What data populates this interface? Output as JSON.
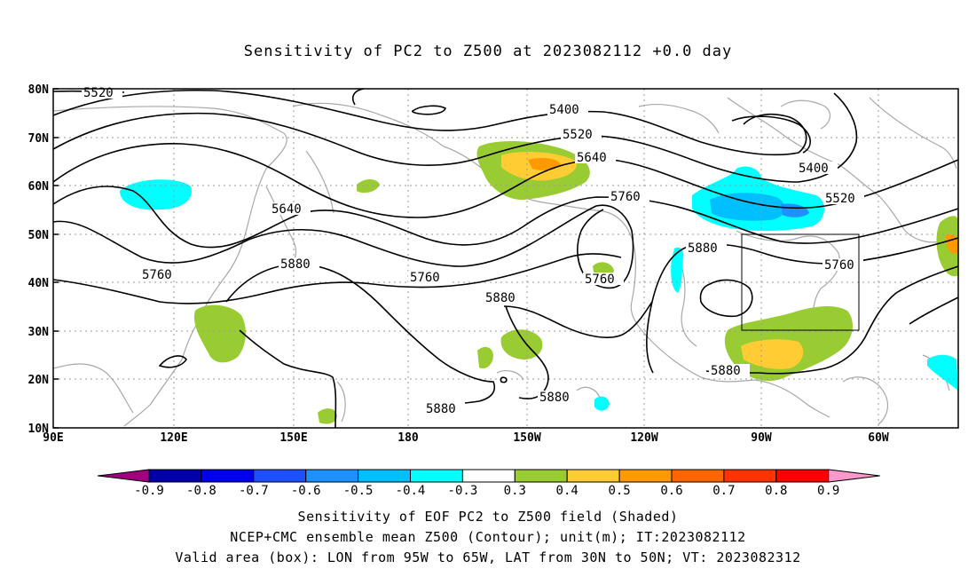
{
  "title": "Sensitivity of PC2 to Z500 at 2023082112 +0.0 day",
  "axes": {
    "lat_labels": [
      "80N",
      "70N",
      "60N",
      "50N",
      "40N",
      "30N",
      "20N",
      "10N"
    ],
    "lon_labels": [
      "90E",
      "120E",
      "150E",
      "180",
      "150W",
      "120W",
      "90W",
      "60W"
    ]
  },
  "contour_labels": [
    "5520",
    "5400",
    "5520",
    "5640",
    "5640",
    "5760",
    "5760",
    "5880",
    "5760",
    "5880",
    "5760",
    "5880",
    "5400",
    "5520",
    "5760",
    "5880",
    "5880"
  ],
  "colorbar": {
    "labels": [
      "-0.9",
      "-0.8",
      "-0.7",
      "-0.6",
      "-0.5",
      "-0.4",
      "-0.3",
      "0.3",
      "0.4",
      "0.5",
      "0.6",
      "0.7",
      "0.8",
      "0.9"
    ],
    "colors": [
      "#a0007f",
      "#0000a8",
      "#0000ee",
      "#1e50ff",
      "#1e90ff",
      "#00bfff",
      "#00ffff",
      "#ffffff",
      "#99cc33",
      "#ffcc33",
      "#ff9900",
      "#ff6600",
      "#ff3300",
      "#ff0000",
      "#ff99cc"
    ]
  },
  "footer": {
    "line1": "Sensitivity of EOF PC2 to Z500 field (Shaded)",
    "line2": "NCEP+CMC ensemble mean Z500 (Contour); unit(m); IT:2023082112",
    "line3": "Valid area (box): LON from 95W to 65W, LAT from 30N to 50N; VT: 2023082312"
  }
}
